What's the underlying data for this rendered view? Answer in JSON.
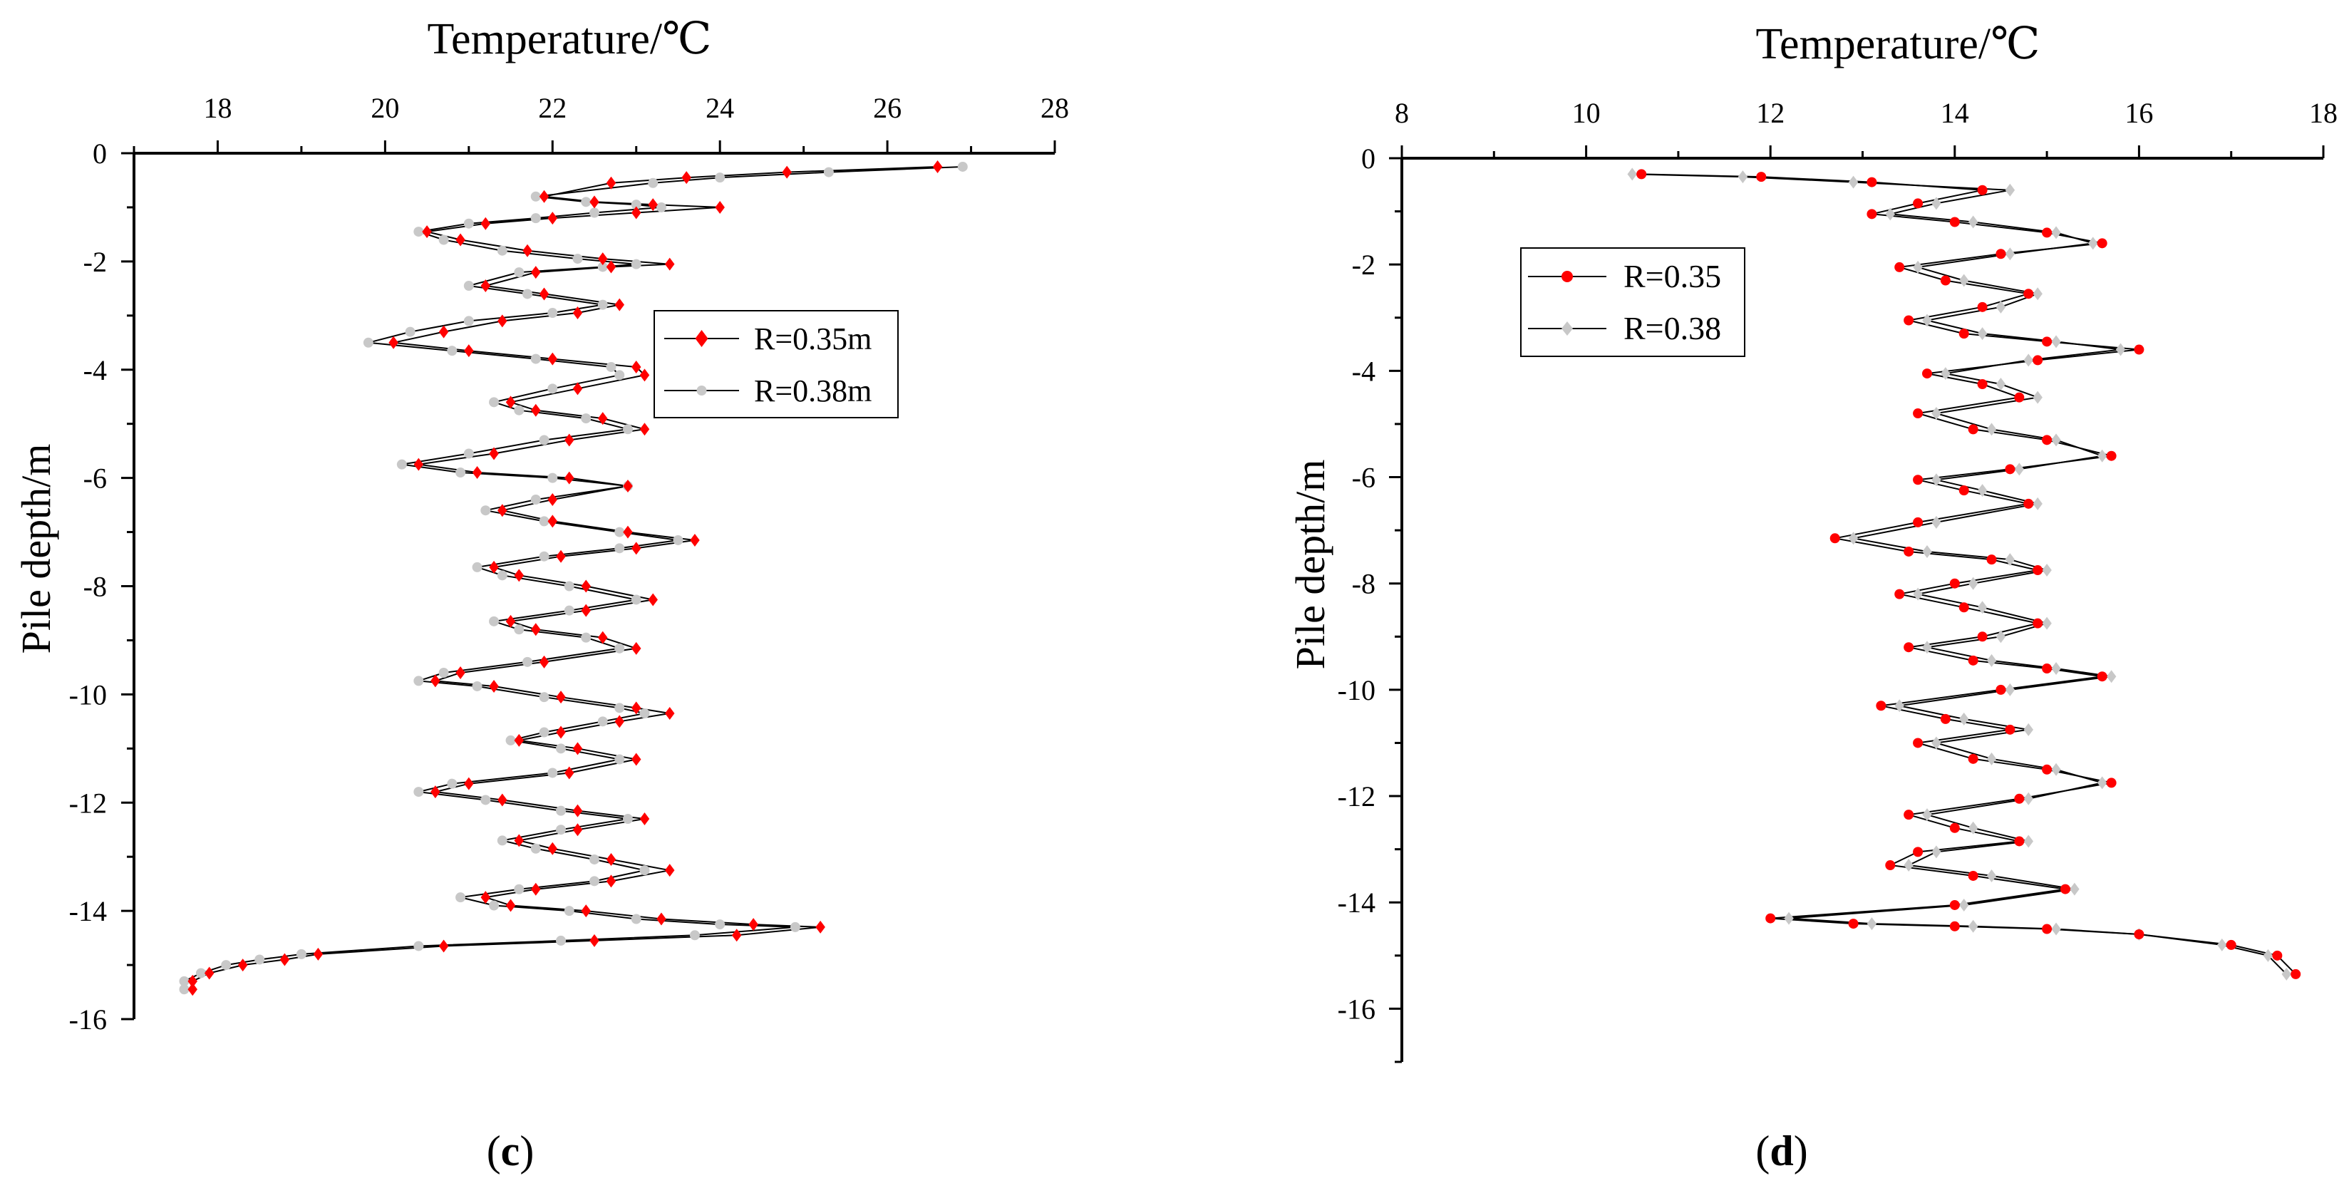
{
  "chart_data": [
    {
      "panel_label": "c",
      "type": "line",
      "title": "Temperature/℃",
      "xlabel": "Temperature/℃",
      "ylabel": "Pile depth/m",
      "xlim": [
        17,
        28
      ],
      "ylim": [
        -16,
        0
      ],
      "xticks": [
        18,
        20,
        22,
        24,
        26,
        28
      ],
      "yticks": [
        0,
        -2,
        -4,
        -6,
        -8,
        -10,
        -12,
        -14,
        -16
      ],
      "legend_position": "upper-right-inside",
      "series": [
        {
          "name": "R=0.35m",
          "marker": "diamond",
          "color": "#ff0000",
          "x": [
            26.6,
            24.8,
            23.6,
            22.7,
            21.9,
            22.5,
            23.2,
            24.0,
            23.0,
            22.0,
            21.2,
            20.5,
            20.9,
            21.7,
            22.6,
            23.4,
            22.7,
            21.8,
            21.2,
            21.9,
            22.8,
            22.3,
            21.4,
            20.7,
            20.1,
            21.0,
            22.0,
            23.0,
            23.1,
            22.3,
            21.5,
            21.8,
            22.6,
            23.1,
            22.2,
            21.3,
            20.4,
            21.1,
            22.2,
            22.9,
            22.0,
            21.4,
            22.0,
            22.9,
            23.7,
            23.0,
            22.1,
            21.3,
            21.6,
            22.4,
            23.2,
            22.4,
            21.5,
            21.8,
            22.6,
            23.0,
            21.9,
            20.9,
            20.6,
            21.3,
            22.1,
            23.0,
            23.4,
            22.8,
            22.1,
            21.6,
            22.3,
            23.0,
            22.2,
            21.0,
            20.6,
            21.4,
            22.3,
            23.1,
            22.3,
            21.6,
            22.0,
            22.7,
            23.4,
            22.7,
            21.8,
            21.2,
            21.5,
            22.4,
            23.3,
            24.4,
            25.2,
            24.2,
            22.5,
            20.7,
            19.2,
            18.8,
            18.3,
            17.9,
            17.7,
            17.7
          ],
          "y": [
            -0.25,
            -0.35,
            -0.45,
            -0.55,
            -0.8,
            -0.9,
            -0.95,
            -1.0,
            -1.1,
            -1.2,
            -1.3,
            -1.45,
            -1.6,
            -1.8,
            -1.95,
            -2.05,
            -2.1,
            -2.2,
            -2.45,
            -2.6,
            -2.8,
            -2.95,
            -3.1,
            -3.3,
            -3.5,
            -3.65,
            -3.8,
            -3.95,
            -4.1,
            -4.35,
            -4.6,
            -4.75,
            -4.9,
            -5.1,
            -5.3,
            -5.55,
            -5.75,
            -5.9,
            -6.0,
            -6.15,
            -6.4,
            -6.6,
            -6.8,
            -7.0,
            -7.15,
            -7.3,
            -7.45,
            -7.65,
            -7.8,
            -8.0,
            -8.25,
            -8.45,
            -8.65,
            -8.8,
            -8.95,
            -9.15,
            -9.4,
            -9.6,
            -9.75,
            -9.85,
            -10.05,
            -10.25,
            -10.35,
            -10.5,
            -10.7,
            -10.85,
            -11.0,
            -11.2,
            -11.45,
            -11.65,
            -11.8,
            -11.95,
            -12.15,
            -12.3,
            -12.5,
            -12.7,
            -12.85,
            -13.05,
            -13.25,
            -13.45,
            -13.6,
            -13.75,
            -13.9,
            -14.0,
            -14.15,
            -14.25,
            -14.3,
            -14.45,
            -14.55,
            -14.65,
            -14.8,
            -14.9,
            -15.0,
            -15.15,
            -15.3,
            -15.45
          ]
        },
        {
          "name": "R=0.38m",
          "marker": "circle",
          "color": "#c8c8c8",
          "x": [
            26.9,
            25.3,
            24.0,
            23.2,
            21.8,
            22.4,
            23.0,
            23.3,
            22.5,
            21.8,
            21.0,
            20.4,
            20.7,
            21.4,
            22.3,
            23.0,
            22.6,
            21.6,
            21.0,
            21.7,
            22.6,
            22.0,
            21.0,
            20.3,
            19.8,
            20.8,
            21.8,
            22.7,
            22.8,
            22.0,
            21.3,
            21.6,
            22.4,
            22.9,
            21.9,
            21.0,
            20.2,
            20.9,
            22.0,
            22.9,
            21.8,
            21.2,
            21.9,
            22.8,
            23.5,
            22.8,
            21.9,
            21.1,
            21.4,
            22.2,
            23.0,
            22.2,
            21.3,
            21.6,
            22.4,
            22.8,
            21.7,
            20.7,
            20.4,
            21.1,
            21.9,
            22.8,
            23.1,
            22.6,
            21.9,
            21.5,
            22.1,
            22.8,
            22.0,
            20.8,
            20.4,
            21.2,
            22.1,
            22.9,
            22.1,
            21.4,
            21.8,
            22.5,
            23.1,
            22.5,
            21.6,
            20.9,
            21.3,
            22.2,
            23.0,
            24.0,
            24.9,
            23.7,
            22.1,
            20.4,
            19.0,
            18.5,
            18.1,
            17.8,
            17.6,
            17.6
          ],
          "y": [
            -0.25,
            -0.35,
            -0.45,
            -0.55,
            -0.8,
            -0.9,
            -0.95,
            -1.0,
            -1.1,
            -1.2,
            -1.3,
            -1.45,
            -1.6,
            -1.8,
            -1.95,
            -2.05,
            -2.1,
            -2.2,
            -2.45,
            -2.6,
            -2.8,
            -2.95,
            -3.1,
            -3.3,
            -3.5,
            -3.65,
            -3.8,
            -3.95,
            -4.1,
            -4.35,
            -4.6,
            -4.75,
            -4.9,
            -5.1,
            -5.3,
            -5.55,
            -5.75,
            -5.9,
            -6.0,
            -6.15,
            -6.4,
            -6.6,
            -6.8,
            -7.0,
            -7.15,
            -7.3,
            -7.45,
            -7.65,
            -7.8,
            -8.0,
            -8.25,
            -8.45,
            -8.65,
            -8.8,
            -8.95,
            -9.15,
            -9.4,
            -9.6,
            -9.75,
            -9.85,
            -10.05,
            -10.25,
            -10.35,
            -10.5,
            -10.7,
            -10.85,
            -11.0,
            -11.2,
            -11.45,
            -11.65,
            -11.8,
            -11.95,
            -12.15,
            -12.3,
            -12.5,
            -12.7,
            -12.85,
            -13.05,
            -13.25,
            -13.45,
            -13.6,
            -13.75,
            -13.9,
            -14.0,
            -14.15,
            -14.25,
            -14.3,
            -14.45,
            -14.55,
            -14.65,
            -14.8,
            -14.9,
            -15.0,
            -15.15,
            -15.3,
            -15.45
          ]
        }
      ]
    },
    {
      "panel_label": "d",
      "type": "line",
      "title": "Temperature/℃",
      "xlabel": "Temperature/℃",
      "ylabel": "Pile depth/m",
      "xlim": [
        8,
        18
      ],
      "ylim": [
        -17,
        0
      ],
      "xticks": [
        8,
        10,
        12,
        14,
        16,
        18
      ],
      "yticks": [
        0,
        -2,
        -4,
        -6,
        -8,
        -10,
        -12,
        -14,
        -16
      ],
      "legend_position": "upper-left-inside",
      "series": [
        {
          "name": "R=0.35",
          "marker": "circle",
          "color": "#ff0000",
          "x": [
            10.6,
            11.9,
            13.1,
            14.3,
            13.6,
            13.1,
            14.0,
            15.0,
            15.6,
            14.5,
            13.4,
            13.9,
            14.8,
            14.3,
            13.5,
            14.1,
            15.0,
            16.0,
            14.9,
            13.7,
            14.3,
            14.7,
            13.6,
            14.2,
            15.0,
            15.7,
            14.6,
            13.6,
            14.1,
            14.8,
            13.6,
            12.7,
            13.5,
            14.4,
            14.9,
            14.0,
            13.4,
            14.1,
            14.9,
            14.3,
            13.5,
            14.2,
            15.0,
            15.6,
            14.5,
            13.2,
            13.9,
            14.6,
            13.6,
            14.2,
            15.0,
            15.7,
            14.7,
            13.5,
            14.0,
            14.7,
            13.6,
            13.3,
            14.2,
            15.2,
            14.0,
            12.0,
            12.9,
            14.0,
            15.0,
            16.0,
            17.0,
            17.5,
            17.7
          ],
          "y": [
            -0.3,
            -0.35,
            -0.45,
            -0.6,
            -0.85,
            -1.05,
            -1.2,
            -1.4,
            -1.6,
            -1.8,
            -2.05,
            -2.3,
            -2.55,
            -2.8,
            -3.05,
            -3.3,
            -3.45,
            -3.6,
            -3.8,
            -4.05,
            -4.25,
            -4.5,
            -4.8,
            -5.1,
            -5.3,
            -5.6,
            -5.85,
            -6.05,
            -6.25,
            -6.5,
            -6.85,
            -7.15,
            -7.4,
            -7.55,
            -7.75,
            -8.0,
            -8.2,
            -8.45,
            -8.75,
            -9.0,
            -9.2,
            -9.45,
            -9.6,
            -9.75,
            -10.0,
            -10.3,
            -10.55,
            -10.75,
            -11.0,
            -11.3,
            -11.5,
            -11.75,
            -12.05,
            -12.35,
            -12.6,
            -12.85,
            -13.05,
            -13.3,
            -13.5,
            -13.75,
            -14.05,
            -14.3,
            -14.4,
            -14.45,
            -14.5,
            -14.6,
            -14.8,
            -15.0,
            -15.35
          ]
        },
        {
          "name": "R=0.38",
          "marker": "diamond",
          "color": "#c8c8c8",
          "x": [
            10.5,
            11.7,
            12.9,
            14.6,
            13.8,
            13.3,
            14.2,
            15.1,
            15.5,
            14.6,
            13.6,
            14.1,
            14.9,
            14.5,
            13.7,
            14.3,
            15.1,
            15.8,
            14.8,
            13.9,
            14.5,
            14.9,
            13.8,
            14.4,
            15.1,
            15.6,
            14.7,
            13.8,
            14.3,
            14.9,
            13.8,
            12.9,
            13.7,
            14.6,
            15.0,
            14.2,
            13.6,
            14.3,
            15.0,
            14.5,
            13.7,
            14.4,
            15.1,
            15.7,
            14.6,
            13.4,
            14.1,
            14.8,
            13.8,
            14.4,
            15.1,
            15.6,
            14.8,
            13.7,
            14.2,
            14.8,
            13.8,
            13.5,
            14.4,
            15.3,
            14.1,
            12.2,
            13.1,
            14.2,
            15.1,
            16.0,
            16.9,
            17.4,
            17.6
          ],
          "y": [
            -0.3,
            -0.35,
            -0.45,
            -0.6,
            -0.85,
            -1.05,
            -1.2,
            -1.4,
            -1.6,
            -1.8,
            -2.05,
            -2.3,
            -2.55,
            -2.8,
            -3.05,
            -3.3,
            -3.45,
            -3.6,
            -3.8,
            -4.05,
            -4.25,
            -4.5,
            -4.8,
            -5.1,
            -5.3,
            -5.6,
            -5.85,
            -6.05,
            -6.25,
            -6.5,
            -6.85,
            -7.15,
            -7.4,
            -7.55,
            -7.75,
            -8.0,
            -8.2,
            -8.45,
            -8.75,
            -9.0,
            -9.2,
            -9.45,
            -9.6,
            -9.75,
            -10.0,
            -10.3,
            -10.55,
            -10.75,
            -11.0,
            -11.3,
            -11.5,
            -11.75,
            -12.05,
            -12.35,
            -12.6,
            -12.85,
            -13.05,
            -13.3,
            -13.5,
            -13.75,
            -14.05,
            -14.3,
            -14.4,
            -14.45,
            -14.5,
            -14.6,
            -14.8,
            -15.0,
            -15.35
          ]
        }
      ]
    }
  ]
}
